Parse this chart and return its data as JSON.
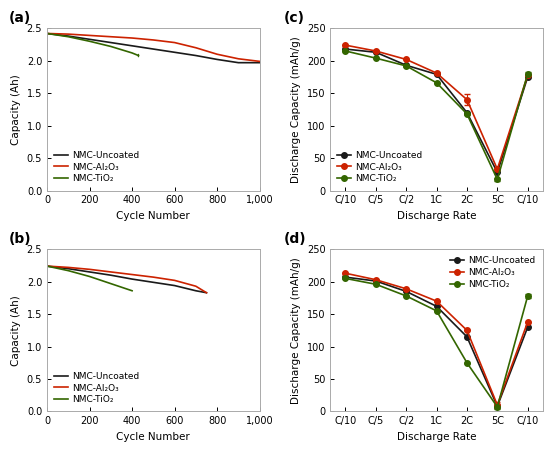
{
  "panel_a": {
    "label": "(a)",
    "xlabel": "Cycle Number",
    "ylabel": "Capacity (Ah)",
    "xlim": [
      0,
      1000
    ],
    "ylim": [
      0,
      2.5
    ],
    "yticks": [
      0,
      0.5,
      1.0,
      1.5,
      2.0,
      2.5
    ],
    "xticks": [
      0,
      200,
      400,
      600,
      800,
      1000
    ],
    "xtick_labels": [
      "0",
      "200",
      "400",
      "600",
      "800",
      "1,000"
    ],
    "lines": {
      "black": {
        "x": [
          0,
          100,
          200,
          300,
          400,
          500,
          600,
          700,
          800,
          900,
          1000
        ],
        "y": [
          2.42,
          2.38,
          2.33,
          2.28,
          2.23,
          2.18,
          2.13,
          2.08,
          2.02,
          1.97,
          1.97
        ]
      },
      "red": {
        "x": [
          0,
          100,
          200,
          300,
          400,
          500,
          600,
          700,
          800,
          900,
          1000
        ],
        "y": [
          2.42,
          2.41,
          2.39,
          2.37,
          2.35,
          2.32,
          2.28,
          2.2,
          2.1,
          2.03,
          1.99
        ]
      },
      "green": {
        "x": [
          0,
          100,
          200,
          300,
          400,
          430
        ],
        "y": [
          2.42,
          2.37,
          2.3,
          2.22,
          2.12,
          2.08
        ]
      }
    },
    "green_end_x": 430,
    "green_end_y": 2.08,
    "legend_labels": [
      "NMC-Uncoated",
      "NMC-Al₂O₃",
      "NMC-TiO₂"
    ],
    "legend_loc": "lower left"
  },
  "panel_b": {
    "label": "(b)",
    "xlabel": "Cycle Number",
    "ylabel": "Capacity (Ah)",
    "xlim": [
      0,
      1000
    ],
    "ylim": [
      0,
      2.5
    ],
    "yticks": [
      0,
      0.5,
      1.0,
      1.5,
      2.0,
      2.5
    ],
    "xticks": [
      0,
      200,
      400,
      600,
      800,
      1000
    ],
    "xtick_labels": [
      "0",
      "200",
      "400",
      "600",
      "800",
      "1,000"
    ],
    "lines": {
      "black": {
        "x": [
          0,
          100,
          200,
          300,
          400,
          500,
          600,
          700,
          750
        ],
        "y": [
          2.24,
          2.2,
          2.15,
          2.1,
          2.04,
          1.99,
          1.94,
          1.86,
          1.83
        ]
      },
      "red": {
        "x": [
          0,
          100,
          200,
          300,
          400,
          500,
          600,
          700,
          750
        ],
        "y": [
          2.24,
          2.22,
          2.19,
          2.15,
          2.11,
          2.07,
          2.02,
          1.93,
          1.83
        ]
      },
      "green": {
        "x": [
          0,
          100,
          200,
          300,
          400
        ],
        "y": [
          2.24,
          2.17,
          2.08,
          1.97,
          1.86
        ]
      }
    },
    "legend_labels": [
      "NMC-Uncoated",
      "NMC-Al₂O₃",
      "NMC-TiO₂"
    ],
    "legend_loc": "lower left"
  },
  "panel_c": {
    "label": "(c)",
    "xlabel": "Discharge Rate",
    "ylabel": "Discharge Capacity (mAh/g)",
    "xlim": [
      -0.5,
      6.5
    ],
    "ylim": [
      0,
      250
    ],
    "yticks": [
      0,
      50,
      100,
      150,
      200,
      250
    ],
    "xtick_labels": [
      "C/10",
      "C/5",
      "C/2",
      "1C",
      "2C",
      "5C",
      "C/10"
    ],
    "lines": {
      "black": {
        "y": [
          218,
          213,
          193,
          179,
          120,
          28,
          175
        ]
      },
      "red": {
        "y": [
          224,
          215,
          202,
          181,
          140,
          33,
          178
        ],
        "yerr": [
          0,
          0,
          0,
          0,
          8,
          0,
          0
        ]
      },
      "green": {
        "y": [
          215,
          204,
          192,
          166,
          118,
          17,
          180
        ],
        "yerr": [
          0,
          0,
          0,
          0,
          0,
          3,
          3
        ]
      }
    },
    "legend_labels": [
      "NMC-Uncoated",
      "NMC-Al₂O₃",
      "NMC-TiO₂"
    ],
    "legend_loc": "lower left"
  },
  "panel_d": {
    "label": "(d)",
    "xlabel": "Discharge Rate",
    "ylabel": "Discharge Capacity (mAh/g)",
    "xlim": [
      -0.5,
      6.5
    ],
    "ylim": [
      0,
      250
    ],
    "yticks": [
      0,
      50,
      100,
      150,
      200,
      250
    ],
    "xtick_labels": [
      "C/10",
      "C/5",
      "C/2",
      "1C",
      "2C",
      "5C",
      "C/10"
    ],
    "lines": {
      "black": {
        "y": [
          207,
          201,
          185,
          162,
          115,
          8,
          130
        ]
      },
      "red": {
        "y": [
          213,
          203,
          189,
          170,
          125,
          10,
          138
        ],
        "yerr": [
          0,
          0,
          0,
          0,
          0,
          4,
          0
        ]
      },
      "green": {
        "y": [
          205,
          196,
          178,
          155,
          75,
          7,
          178
        ],
        "yerr": [
          0,
          0,
          0,
          0,
          0,
          3,
          3
        ]
      }
    },
    "legend_labels": [
      "NMC-Uncoated",
      "NMC-Al₂O₃",
      "NMC-TiO₂"
    ],
    "legend_loc": "upper right"
  },
  "colors": {
    "black": "#1a1a1a",
    "red": "#cc2200",
    "green": "#336600"
  },
  "markersize": 4,
  "linewidth": 1.2
}
